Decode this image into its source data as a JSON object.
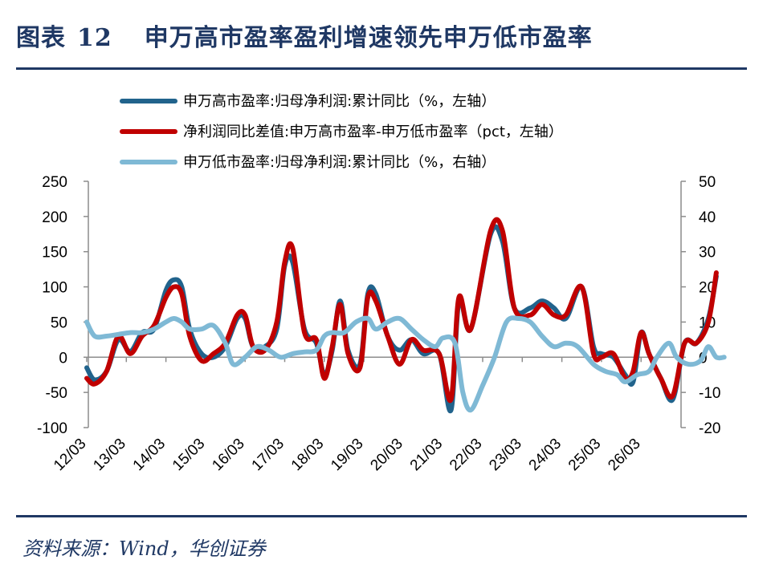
{
  "header": {
    "label": "图表",
    "number": "12",
    "title": "申万高市盈率盈利增速领先申万低市盈率"
  },
  "source": "资料来源：Wind，华创证券",
  "colors": {
    "navy": "#1F3864",
    "dark_blue": "#21638C",
    "red": "#C00000",
    "light_blue": "#7FB9D5"
  },
  "chart_data": {
    "type": "line",
    "x_ticks": [
      "12/03",
      "13/03",
      "14/03",
      "15/03",
      "16/03",
      "17/03",
      "18/03",
      "19/03",
      "20/03",
      "21/03",
      "22/03",
      "23/03",
      "24/03",
      "25/03",
      "26/03"
    ],
    "y_left": {
      "min": -100,
      "max": 250,
      "ticks": [
        -100,
        -50,
        0,
        50,
        100,
        150,
        200,
        250
      ]
    },
    "y_right": {
      "min": -20,
      "max": 50,
      "ticks": [
        -20,
        -10,
        0,
        10,
        20,
        30,
        40,
        50
      ]
    },
    "legend_position": "top-left",
    "series": [
      {
        "name": "申万高市盈率:归母净利润:累计同比（%，左轴）",
        "axis": "left",
        "color": "#21638C",
        "width": 6,
        "points": [
          [
            0.0,
            -15
          ],
          [
            0.2,
            -32
          ],
          [
            0.5,
            -20
          ],
          [
            0.8,
            25
          ],
          [
            1.1,
            8
          ],
          [
            1.4,
            35
          ],
          [
            1.7,
            40
          ],
          [
            2.0,
            95
          ],
          [
            2.2,
            110
          ],
          [
            2.4,
            100
          ],
          [
            2.6,
            40
          ],
          [
            2.9,
            5
          ],
          [
            3.2,
            0
          ],
          [
            3.5,
            15
          ],
          [
            3.8,
            55
          ],
          [
            4.0,
            55
          ],
          [
            4.2,
            15
          ],
          [
            4.5,
            15
          ],
          [
            4.8,
            40
          ],
          [
            5.0,
            130
          ],
          [
            5.2,
            135
          ],
          [
            5.5,
            40
          ],
          [
            5.8,
            20
          ],
          [
            6.0,
            -25
          ],
          [
            6.2,
            10
          ],
          [
            6.4,
            80
          ],
          [
            6.6,
            10
          ],
          [
            6.9,
            -10
          ],
          [
            7.1,
            90
          ],
          [
            7.3,
            90
          ],
          [
            7.6,
            30
          ],
          [
            7.9,
            10
          ],
          [
            8.2,
            25
          ],
          [
            8.5,
            5
          ],
          [
            8.9,
            5
          ],
          [
            9.2,
            -75
          ],
          [
            9.4,
            80
          ],
          [
            9.7,
            40
          ],
          [
            10.2,
            175
          ],
          [
            10.5,
            165
          ],
          [
            10.8,
            70
          ],
          [
            11.2,
            70
          ],
          [
            11.5,
            80
          ],
          [
            11.8,
            70
          ],
          [
            12.1,
            55
          ],
          [
            12.5,
            100
          ],
          [
            12.8,
            15
          ],
          [
            13.0,
            5
          ],
          [
            13.3,
            0
          ],
          [
            13.6,
            -25
          ],
          [
            13.8,
            -35
          ],
          [
            14.0,
            35
          ],
          [
            14.2,
            5
          ],
          [
            14.5,
            -30
          ],
          [
            14.8,
            -60
          ],
          [
            15.1,
            20
          ],
          [
            15.4,
            20
          ],
          [
            15.7,
            55
          ],
          [
            15.9,
            115
          ]
        ]
      },
      {
        "name": "净利润同比差值:申万高市盈率-申万低市盈率（pct，左轴）",
        "axis": "left",
        "color": "#C00000",
        "width": 6,
        "points": [
          [
            0.0,
            -30
          ],
          [
            0.2,
            -38
          ],
          [
            0.5,
            -20
          ],
          [
            0.8,
            30
          ],
          [
            1.1,
            5
          ],
          [
            1.4,
            30
          ],
          [
            1.7,
            45
          ],
          [
            2.0,
            85
          ],
          [
            2.2,
            100
          ],
          [
            2.4,
            90
          ],
          [
            2.6,
            30
          ],
          [
            2.9,
            -5
          ],
          [
            3.2,
            5
          ],
          [
            3.5,
            20
          ],
          [
            3.8,
            60
          ],
          [
            4.0,
            60
          ],
          [
            4.2,
            15
          ],
          [
            4.5,
            10
          ],
          [
            4.8,
            50
          ],
          [
            5.0,
            135
          ],
          [
            5.2,
            155
          ],
          [
            5.5,
            35
          ],
          [
            5.8,
            25
          ],
          [
            6.0,
            -30
          ],
          [
            6.2,
            15
          ],
          [
            6.4,
            75
          ],
          [
            6.6,
            5
          ],
          [
            6.9,
            -15
          ],
          [
            7.1,
            85
          ],
          [
            7.3,
            80
          ],
          [
            7.6,
            30
          ],
          [
            7.9,
            -10
          ],
          [
            8.2,
            25
          ],
          [
            8.5,
            10
          ],
          [
            8.9,
            5
          ],
          [
            9.2,
            -60
          ],
          [
            9.4,
            85
          ],
          [
            9.7,
            40
          ],
          [
            10.2,
            180
          ],
          [
            10.5,
            180
          ],
          [
            10.8,
            70
          ],
          [
            11.2,
            60
          ],
          [
            11.5,
            75
          ],
          [
            11.8,
            60
          ],
          [
            12.1,
            60
          ],
          [
            12.5,
            100
          ],
          [
            12.8,
            5
          ],
          [
            13.0,
            0
          ],
          [
            13.3,
            5
          ],
          [
            13.6,
            -30
          ],
          [
            13.8,
            -20
          ],
          [
            14.0,
            35
          ],
          [
            14.2,
            5
          ],
          [
            14.5,
            -30
          ],
          [
            14.8,
            -55
          ],
          [
            15.1,
            20
          ],
          [
            15.4,
            20
          ],
          [
            15.7,
            50
          ],
          [
            15.9,
            120
          ]
        ]
      },
      {
        "name": "申万低市盈率:归母净利润:累计同比（%，右轴）",
        "axis": "right",
        "color": "#7FB9D5",
        "width": 6,
        "points": [
          [
            0.0,
            10
          ],
          [
            0.2,
            6
          ],
          [
            0.5,
            6
          ],
          [
            0.8,
            6.5
          ],
          [
            1.1,
            7
          ],
          [
            1.4,
            7
          ],
          [
            1.7,
            8
          ],
          [
            2.0,
            10
          ],
          [
            2.2,
            11
          ],
          [
            2.4,
            10
          ],
          [
            2.6,
            8
          ],
          [
            2.9,
            8
          ],
          [
            3.2,
            9
          ],
          [
            3.5,
            4
          ],
          [
            3.7,
            -2
          ],
          [
            4.0,
            0
          ],
          [
            4.3,
            3
          ],
          [
            4.6,
            2
          ],
          [
            4.9,
            0
          ],
          [
            5.2,
            1
          ],
          [
            5.5,
            1.5
          ],
          [
            5.8,
            2
          ],
          [
            6.0,
            6
          ],
          [
            6.2,
            7
          ],
          [
            6.5,
            7
          ],
          [
            6.8,
            10
          ],
          [
            7.1,
            11
          ],
          [
            7.3,
            8
          ],
          [
            7.6,
            10
          ],
          [
            7.9,
            11
          ],
          [
            8.2,
            8
          ],
          [
            8.5,
            5
          ],
          [
            8.8,
            3
          ],
          [
            9.0,
            5.5
          ],
          [
            9.3,
            4
          ],
          [
            9.5,
            -10
          ],
          [
            9.7,
            -15
          ],
          [
            10.0,
            -8
          ],
          [
            10.3,
            0
          ],
          [
            10.6,
            10
          ],
          [
            10.9,
            11
          ],
          [
            11.2,
            10
          ],
          [
            11.5,
            6
          ],
          [
            11.8,
            3
          ],
          [
            12.1,
            4
          ],
          [
            12.4,
            3
          ],
          [
            12.8,
            -2
          ],
          [
            13.1,
            -4
          ],
          [
            13.4,
            -5
          ],
          [
            13.6,
            -7
          ],
          [
            13.9,
            -5
          ],
          [
            14.2,
            -4
          ],
          [
            14.4,
            0
          ],
          [
            14.7,
            4
          ],
          [
            14.9,
            0
          ],
          [
            15.2,
            -2
          ],
          [
            15.5,
            -1
          ],
          [
            15.7,
            3
          ],
          [
            15.9,
            0
          ],
          [
            16.1,
            0
          ]
        ]
      }
    ]
  }
}
